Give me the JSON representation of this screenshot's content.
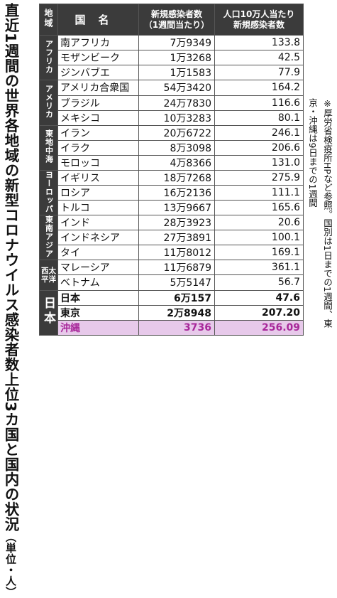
{
  "title": "直近1週間の世界各地域の新型コロナウイルス感染者数上位3カ国と国内の状況",
  "unit": "（単位・人）",
  "note": "※厚労省検疫所HPなど参照。国別は1日までの1週間、東京・沖縄は9日までの1週間",
  "headers": {
    "region": "地域",
    "country": "国名",
    "cases": [
      "新規感染者数",
      "（1週間当たり）"
    ],
    "per100k": [
      "人口10万人当たり",
      "新規感染者数"
    ]
  },
  "rows": [
    {
      "region": "アフリカ",
      "name": "南アフリカ",
      "cases": "7万9349",
      "per": "133.8"
    },
    {
      "name": "モザンビーク",
      "cases": "1万3268",
      "per": "42.5"
    },
    {
      "name": "ジンバブエ",
      "cases": "1万1583",
      "per": "77.9"
    },
    {
      "region": "アメリカ",
      "name": "アメリカ合衆国",
      "cases": "54万3420",
      "per": "164.2"
    },
    {
      "name": "ブラジル",
      "cases": "24万7830",
      "per": "116.6"
    },
    {
      "name": "メキシコ",
      "cases": "10万3283",
      "per": "80.1"
    },
    {
      "region": "東地中海",
      "name": "イラン",
      "cases": "20万6722",
      "per": "246.1"
    },
    {
      "name": "イラク",
      "cases": "8万3098",
      "per": "206.6"
    },
    {
      "name": "モロッコ",
      "cases": "4万8366",
      "per": "131.0"
    },
    {
      "region": "ヨーロッパ",
      "name": "イギリス",
      "cases": "18万7268",
      "per": "275.9"
    },
    {
      "name": "ロシア",
      "cases": "16万2136",
      "per": "111.1"
    },
    {
      "name": "トルコ",
      "cases": "13万9667",
      "per": "165.6"
    },
    {
      "region": "東南アジア",
      "name": "インド",
      "cases": "28万3923",
      "per": "20.6"
    },
    {
      "name": "インドネシア",
      "cases": "27万3891",
      "per": "100.1"
    },
    {
      "name": "タイ",
      "cases": "11万8012",
      "per": "169.1"
    },
    {
      "region": "西太平洋",
      "name": "マレーシア",
      "cases": "11万6879",
      "per": "361.1"
    },
    {
      "name": "ベトナム",
      "cases": "5万5147",
      "per": "56.7"
    },
    {
      "region": "日本",
      "name": "日本",
      "cases": "6万157",
      "per": "47.6"
    },
    {
      "name": "東京",
      "cases": "2万8948",
      "per": "207.20"
    },
    {
      "name": "沖縄",
      "cases": "3736",
      "per": "256.09"
    }
  ]
}
